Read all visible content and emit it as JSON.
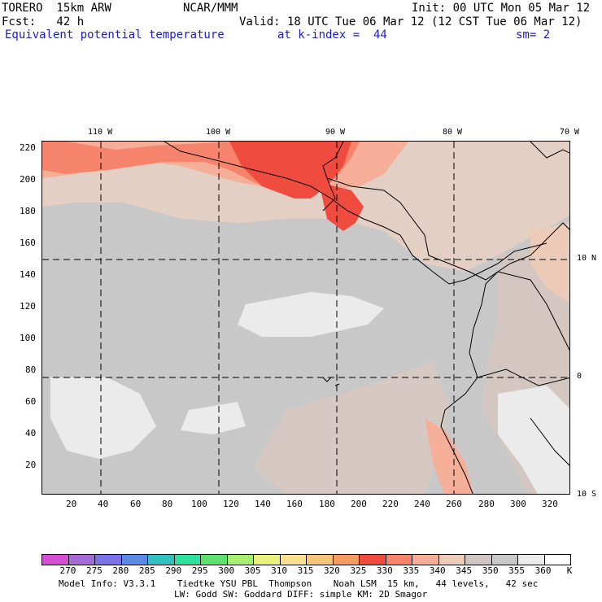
{
  "header": {
    "model": "TORERO  15km ARW",
    "org": "NCAR/MMM",
    "init": "Init: 00 UTC Mon 05 Mar 12",
    "fcst": "Fcst:   42 h",
    "valid": "Valid: 18 UTC Tue 06 Mar 12 (12 CST Tue 06 Mar 12)",
    "field": "Equivalent potential temperature",
    "level": "at k-index =  44",
    "smoothing": "sm= 2"
  },
  "map": {
    "lon_labels": [
      "110 W",
      "100 W",
      "90 W",
      "80 W",
      "70 W"
    ],
    "lat_labels": [
      "10 N",
      "0",
      "10 S"
    ],
    "x_ticks": [
      "20",
      "40",
      "60",
      "80",
      "100",
      "120",
      "140",
      "160",
      "180",
      "200",
      "220",
      "240",
      "260",
      "280",
      "300",
      "320"
    ],
    "y_ticks": [
      "220",
      "200",
      "180",
      "160",
      "140",
      "120",
      "100",
      "80",
      "60",
      "40",
      "20"
    ],
    "field_colors": {
      "330": "#ef4b3f",
      "335": "#f6836b",
      "340": "#f5ae98",
      "345": "#eccbb8",
      "350": "#cfc6c2",
      "355": "#c8c8c8",
      "360": "#ebebeb",
      "extra": "#f4f4f4"
    },
    "coastline_color": "#000000",
    "grid_style": "dashed"
  },
  "legend": {
    "labels": [
      "270",
      "275",
      "280",
      "285",
      "290",
      "295",
      "300",
      "305",
      "310",
      "315",
      "320",
      "325",
      "330",
      "335",
      "340",
      "345",
      "350",
      "355",
      "360",
      "K"
    ],
    "colors": [
      "#d24fd2",
      "#a66ad6",
      "#7a72e6",
      "#5a8ae6",
      "#32c0c0",
      "#2ee0a0",
      "#5ee070",
      "#a8ee70",
      "#e8f080",
      "#fbe090",
      "#f6c478",
      "#f69a60",
      "#ef4b3f",
      "#f6836b",
      "#f5ae98",
      "#eccbb8",
      "#cfc6c2",
      "#c8c8c8",
      "#ebebeb",
      "#ffffff"
    ]
  },
  "footer": {
    "line1": "Model Info: V3.3.1    Tiedtke YSU PBL  Thompson    Noah LSM  15 km,   44 levels,   42 sec",
    "line2": "LW: Godd SW: Goddard DIFF: simple KM: 2D Smagor"
  }
}
